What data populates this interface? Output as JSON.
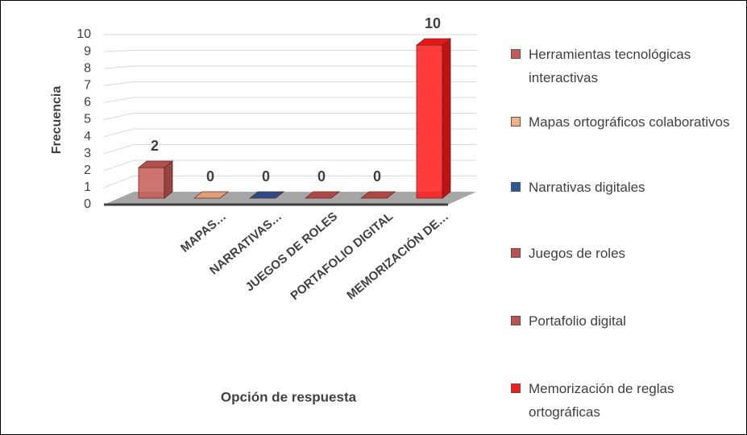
{
  "chart_data": {
    "type": "bar3d",
    "categories": [
      null,
      "MAPAS…",
      "NARRATIVAS…",
      "JUEGOS DE ROLES",
      "PORTAFOLIO DIGITAL",
      "MEMORIZACIÓN DE…"
    ],
    "series": [
      {
        "name": "Herramientas tecnológicas interactivas",
        "color": "#c55a57",
        "values": [
          2,
          null,
          null,
          null,
          null,
          null
        ]
      },
      {
        "name": "Mapas ortográficos colaborativos",
        "color": "#f4b183",
        "values": [
          null,
          0,
          null,
          null,
          null,
          null
        ]
      },
      {
        "name": "Narrativas digitales",
        "color": "#2e5597",
        "values": [
          null,
          null,
          0,
          null,
          null,
          null
        ]
      },
      {
        "name": "Juegos de roles",
        "color": "#c0504d",
        "values": [
          null,
          null,
          null,
          0,
          null,
          null
        ]
      },
      {
        "name": "Portafolio digital",
        "color": "#c0504d",
        "values": [
          null,
          null,
          null,
          null,
          0,
          null
        ]
      },
      {
        "name": "Memorización de reglas ortográficas",
        "color": "#ff1a1a",
        "values": [
          null,
          null,
          null,
          null,
          null,
          10
        ]
      }
    ],
    "y_label": "Frecuencia",
    "x_label": "Opción de respuesta",
    "ylim": [
      0,
      10
    ],
    "yticks": [
      0,
      1,
      2,
      3,
      4,
      5,
      6,
      7,
      8,
      9,
      10
    ],
    "grid": true,
    "legend": "right"
  }
}
